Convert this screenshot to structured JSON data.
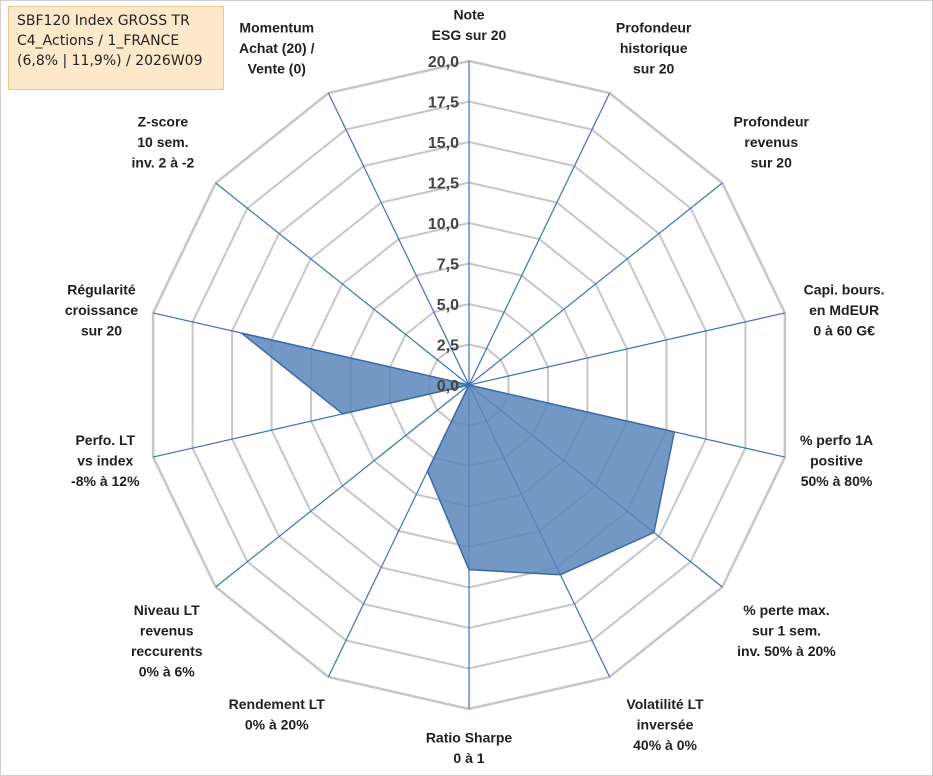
{
  "info_box": {
    "line1": "SBF120 Index GROSS TR",
    "line2": "C4_Actions / 1_FRANCE",
    "line3": "(6,8% | 11,9%) / 2026W09"
  },
  "colors": {
    "fill": "#5b86bb",
    "stroke": "#3a6aa5",
    "grid": "#c6c6c6",
    "spoke": "#3f6fc0"
  },
  "chart_data": {
    "type": "radar",
    "title": "",
    "rmin": 0,
    "rmax": 20,
    "ticks": [
      "0,0",
      "2,5",
      "5,0",
      "7,5",
      "10,0",
      "12,5",
      "15,0",
      "17,5",
      "20,0"
    ],
    "tick_values": [
      0,
      2.5,
      5,
      7.5,
      10,
      12.5,
      15,
      17.5,
      20
    ],
    "axes": [
      [
        "Note",
        "ESG sur 20"
      ],
      [
        "Profondeur",
        "historique",
        "sur 20"
      ],
      [
        "Profondeur",
        "revenus",
        "sur 20"
      ],
      [
        "Capi. bours.",
        "en MdEUR",
        "0 à 60 G€"
      ],
      [
        "% perfo 1A",
        "positive",
        "50% à 80%"
      ],
      [
        "% perte max.",
        "sur 1 sem.",
        "inv. 50% à 20%"
      ],
      [
        "Volatilité LT",
        "inversée",
        "40% à 0%"
      ],
      [
        "Ratio Sharpe",
        "0 à 1"
      ],
      [
        "Rendement LT",
        "0% à 20%"
      ],
      [
        "Niveau LT",
        "revenus",
        "reccurents",
        "0% à 6%"
      ],
      [
        "Perfo. LT",
        "vs index",
        "-8% à 12%"
      ],
      [
        "Régularité",
        "croissance",
        "sur 20"
      ],
      [
        "Z-score",
        "10 sem.",
        "inv. 2 à -2"
      ],
      [
        "Momentum",
        "Achat (20) /",
        "Vente (0)"
      ]
    ],
    "series": [
      {
        "values": [
          0,
          0,
          0,
          0,
          13,
          14.6,
          13,
          11.4,
          5.9,
          0,
          8,
          14.4,
          0,
          0
        ]
      }
    ],
    "grid": true,
    "legend": "none"
  }
}
